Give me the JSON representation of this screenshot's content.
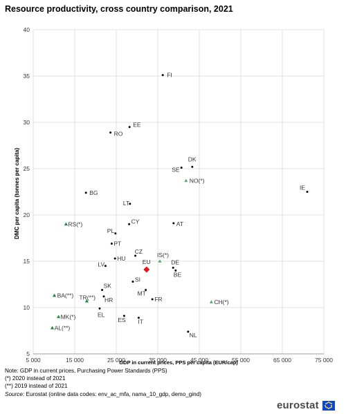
{
  "title": "Resource productivity, cross country comparison, 2021",
  "notes": {
    "line1": "Note: GDP in current prices, Purchasing Power Standards (PPS)",
    "line2": "(*) 2020 instead of 2021",
    "line3": "(**) 2019 instead of 2021",
    "source_label": "Source:",
    "source_text": " Eurostat (online data codes: env_ac_mfa, nama_10_gdp, demo_gind)"
  },
  "logo": {
    "text": "eurostat",
    "flag_icon": "eu-flag-icon"
  },
  "colors": {
    "eu_member": "#000000",
    "eu_aggregate": "#e8141c",
    "efta": "#4aa864",
    "candidate": "#1e8a3c",
    "grid": "#d9d9d9",
    "label": "#333333"
  },
  "chart_data": {
    "type": "scatter",
    "title": "Resource productivity, cross country comparison, 2021",
    "xlabel": "GDP in current prices, PPS per capita (EUR/cap)",
    "ylabel": "DMC per capita (tonnes per capita)",
    "xlim": [
      5000,
      75000
    ],
    "ylim": [
      5,
      40
    ],
    "x_ticks": [
      "5 000",
      "15 000",
      "25 000",
      "35 000",
      "45 000",
      "55 000",
      "65 000",
      "75 000"
    ],
    "y_ticks": [
      "5",
      "10",
      "15",
      "20",
      "25",
      "30",
      "35",
      "40"
    ],
    "grid": true,
    "points": [
      {
        "label": "FI",
        "x": 36200,
        "y": 35.1,
        "group": "eu_member"
      },
      {
        "label": "EE",
        "x": 28200,
        "y": 29.5,
        "group": "eu_member"
      },
      {
        "label": "RO",
        "x": 23600,
        "y": 28.9,
        "group": "eu_member"
      },
      {
        "label": "DK",
        "x": 43300,
        "y": 25.2,
        "group": "eu_member"
      },
      {
        "label": "SE",
        "x": 40700,
        "y": 25.1,
        "group": "eu_member"
      },
      {
        "label": "NO(*)",
        "x": 41800,
        "y": 23.7,
        "group": "efta"
      },
      {
        "label": "IE",
        "x": 71000,
        "y": 22.5,
        "group": "eu_member"
      },
      {
        "label": "BG",
        "x": 17700,
        "y": 22.4,
        "group": "eu_member"
      },
      {
        "label": "LT",
        "x": 28300,
        "y": 21.2,
        "group": "eu_member"
      },
      {
        "label": "RS(*)",
        "x": 12900,
        "y": 19.0,
        "group": "candidate"
      },
      {
        "label": "CY",
        "x": 28100,
        "y": 19.0,
        "group": "eu_member"
      },
      {
        "label": "AT",
        "x": 38800,
        "y": 19.1,
        "group": "eu_member"
      },
      {
        "label": "PL",
        "x": 24800,
        "y": 18.0,
        "group": "eu_member"
      },
      {
        "label": "PT",
        "x": 23900,
        "y": 16.9,
        "group": "eu_member"
      },
      {
        "label": "CZ",
        "x": 29600,
        "y": 15.6,
        "group": "eu_member"
      },
      {
        "label": "IS(*)",
        "x": 35500,
        "y": 15.0,
        "group": "efta"
      },
      {
        "label": "HU",
        "x": 24700,
        "y": 15.3,
        "group": "eu_member"
      },
      {
        "label": "LV",
        "x": 22400,
        "y": 14.5,
        "group": "eu_member"
      },
      {
        "label": "EU",
        "x": 32300,
        "y": 14.1,
        "group": "eu_aggregate"
      },
      {
        "label": "DE",
        "x": 38700,
        "y": 14.3,
        "group": "eu_member"
      },
      {
        "label": "BE",
        "x": 39300,
        "y": 14.0,
        "group": "eu_member"
      },
      {
        "label": "SI",
        "x": 29000,
        "y": 12.8,
        "group": "eu_member"
      },
      {
        "label": "SK",
        "x": 21600,
        "y": 11.9,
        "group": "eu_member"
      },
      {
        "label": "MT",
        "x": 32100,
        "y": 11.9,
        "group": "eu_member"
      },
      {
        "label": "FR",
        "x": 33700,
        "y": 10.9,
        "group": "eu_member"
      },
      {
        "label": "HR",
        "x": 22000,
        "y": 11.2,
        "group": "eu_member"
      },
      {
        "label": "BA(**)",
        "x": 10100,
        "y": 11.3,
        "group": "candidate"
      },
      {
        "label": "TR(**)",
        "x": 17900,
        "y": 10.7,
        "group": "candidate"
      },
      {
        "label": "CH(*)",
        "x": 47900,
        "y": 10.6,
        "group": "efta"
      },
      {
        "label": "EL",
        "x": 21000,
        "y": 9.9,
        "group": "eu_member"
      },
      {
        "label": "ES",
        "x": 26900,
        "y": 9.1,
        "group": "eu_member"
      },
      {
        "label": "IT",
        "x": 30400,
        "y": 8.9,
        "group": "eu_member"
      },
      {
        "label": "MK(*)",
        "x": 11100,
        "y": 9.0,
        "group": "candidate"
      },
      {
        "label": "AL(**)",
        "x": 9600,
        "y": 7.8,
        "group": "candidate"
      },
      {
        "label": "NL",
        "x": 42300,
        "y": 7.4,
        "group": "eu_member"
      }
    ]
  }
}
